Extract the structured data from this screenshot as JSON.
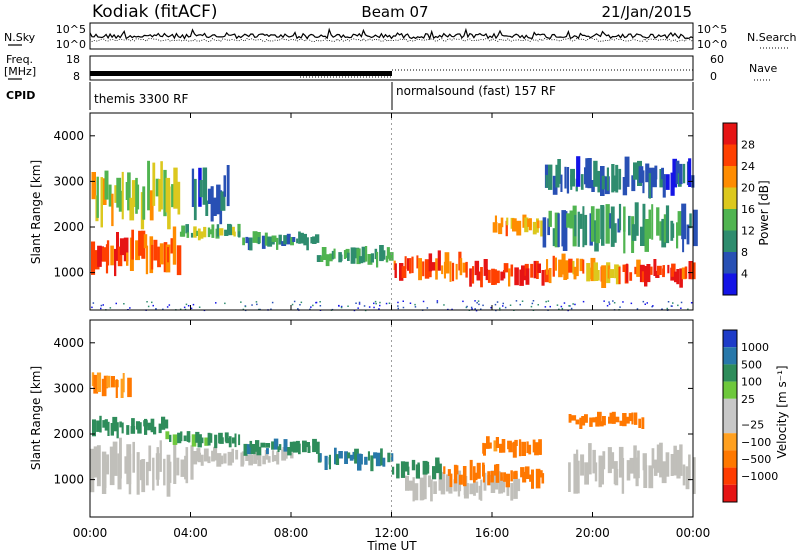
{
  "header": {
    "station": "Kodiak (fitACF)",
    "beam": "Beam 07",
    "date": "21/Jan/2015"
  },
  "noise_panel": {
    "left_label": "N.Sky",
    "right_label": "N.Search",
    "left_ticks": [
      "10^5",
      "10^0"
    ],
    "right_ticks": [
      "10^5",
      "10^0"
    ]
  },
  "freq_panel": {
    "left_label_1": "Freq.",
    "left_label_2": "[MHz]",
    "right_label": "Nave",
    "left_ticks": [
      "18",
      "8"
    ],
    "right_ticks": [
      "60",
      "0"
    ]
  },
  "cpid": {
    "label": "CPID",
    "modes": [
      {
        "name": "themis 3300 RF",
        "start": "00:00",
        "end": "12:00"
      },
      {
        "name": "normalsound (fast) 157 RF",
        "start": "12:00",
        "end": "24:00"
      }
    ]
  },
  "colors": {
    "power_scale": [
      "#1414e6",
      "#2850b4",
      "#2e8c6e",
      "#50b450",
      "#dcc81e",
      "#ff8c00",
      "#ff4000",
      "#e61414"
    ],
    "velocity_scale": [
      "#1e3cc8",
      "#2878aa",
      "#2e8c5a",
      "#6ec83c",
      "#c8c8c8",
      "#c8c8c8",
      "#ffa020",
      "#ff7800",
      "#ff3c00",
      "#e61414"
    ],
    "ground_scatter": "#c0bfba"
  },
  "chart_data": [
    {
      "type": "heatmap",
      "panel": "power",
      "ylabel": "Slant Range [km]",
      "yticks": [
        1000,
        2000,
        3000,
        4000
      ],
      "ylim": [
        180,
        4500
      ],
      "xlim": [
        0,
        24
      ],
      "colorbar_label": "Power [dB]",
      "colorbar_ticks": [
        "28",
        "24",
        "20",
        "16",
        "12",
        "8",
        "4"
      ],
      "colorbar_range": [
        0,
        32
      ],
      "scatter_bands": [
        {
          "t0": 0.0,
          "t1": 1.5,
          "r0": 900,
          "r1": 1900,
          "value": 26
        },
        {
          "t0": 1.5,
          "t1": 3.5,
          "r0": 900,
          "r1": 2100,
          "value": 24
        },
        {
          "t0": 3.5,
          "t1": 6.0,
          "r0": 1700,
          "r1": 2100,
          "value": 14
        },
        {
          "t0": 6.0,
          "t1": 9.0,
          "r0": 1500,
          "r1": 1900,
          "value": 10
        },
        {
          "t0": 9.0,
          "t1": 12.0,
          "r0": 1100,
          "r1": 1600,
          "value": 12
        },
        {
          "t0": 12.0,
          "t1": 15.0,
          "r0": 800,
          "r1": 1500,
          "value": 26
        },
        {
          "t0": 15.0,
          "t1": 18.0,
          "r0": 700,
          "r1": 1300,
          "value": 27
        },
        {
          "t0": 18.0,
          "t1": 21.0,
          "r0": 700,
          "r1": 1400,
          "value": 22
        },
        {
          "t0": 21.0,
          "t1": 24.0,
          "r0": 700,
          "r1": 1300,
          "value": 27
        },
        {
          "t0": 0.0,
          "t1": 3.5,
          "r0": 1900,
          "r1": 3400,
          "value": 17
        },
        {
          "t0": 4.0,
          "t1": 5.5,
          "r0": 2000,
          "r1": 3300,
          "value": 6
        },
        {
          "t0": 16.0,
          "t1": 18.0,
          "r0": 1800,
          "r1": 2300,
          "value": 21
        },
        {
          "t0": 18.0,
          "t1": 24.0,
          "r0": 1400,
          "r1": 2600,
          "value": 11
        },
        {
          "t0": 18.0,
          "t1": 24.0,
          "r0": 2600,
          "r1": 3500,
          "value": 7
        }
      ]
    },
    {
      "type": "heatmap",
      "panel": "velocity",
      "xlabel": "Time UT",
      "ylabel": "Slant Range [km]",
      "yticks": [
        1000,
        2000,
        3000,
        4000
      ],
      "ylim": [
        180,
        4500
      ],
      "xlim": [
        0,
        24
      ],
      "xticks": [
        "00:00",
        "04:00",
        "08:00",
        "12:00",
        "16:00",
        "20:00",
        "00:00"
      ],
      "colorbar_label": "Velocity [m s⁻¹]",
      "colorbar_ticks": [
        "1000",
        "500",
        "100",
        "25",
        "−25",
        "−100",
        "−500",
        "−1000"
      ],
      "ground_scatter_bands": [
        {
          "t0": 0.0,
          "t1": 4.0,
          "r0": 700,
          "r1": 1900
        },
        {
          "t0": 4.0,
          "t1": 8.0,
          "r0": 1300,
          "r1": 1700
        },
        {
          "t0": 12.5,
          "t1": 17.0,
          "r0": 500,
          "r1": 1200
        },
        {
          "t0": 19.0,
          "t1": 24.0,
          "r0": 700,
          "r1": 1800
        }
      ],
      "scatter_bands": [
        {
          "t0": 0.0,
          "t1": 3.0,
          "r0": 1900,
          "r1": 2400,
          "value": 300
        },
        {
          "t0": 3.0,
          "t1": 6.0,
          "r0": 1700,
          "r1": 2100,
          "value": 150
        },
        {
          "t0": 6.0,
          "t1": 9.0,
          "r0": 1500,
          "r1": 1900,
          "value": 400
        },
        {
          "t0": 9.0,
          "t1": 12.0,
          "r0": 1200,
          "r1": 1700,
          "value": 600
        },
        {
          "t0": 12.0,
          "t1": 14.0,
          "r0": 1000,
          "r1": 1500,
          "value": 200
        },
        {
          "t0": 14.0,
          "t1": 18.0,
          "r0": 800,
          "r1": 1400,
          "value": -200
        },
        {
          "t0": 15.5,
          "t1": 18.0,
          "r0": 1500,
          "r1": 2000,
          "value": -150
        },
        {
          "t0": 19.0,
          "t1": 22.0,
          "r0": 2100,
          "r1": 2500,
          "value": -300
        },
        {
          "t0": 0.0,
          "t1": 1.5,
          "r0": 2800,
          "r1": 3400,
          "value": -120
        }
      ]
    }
  ]
}
